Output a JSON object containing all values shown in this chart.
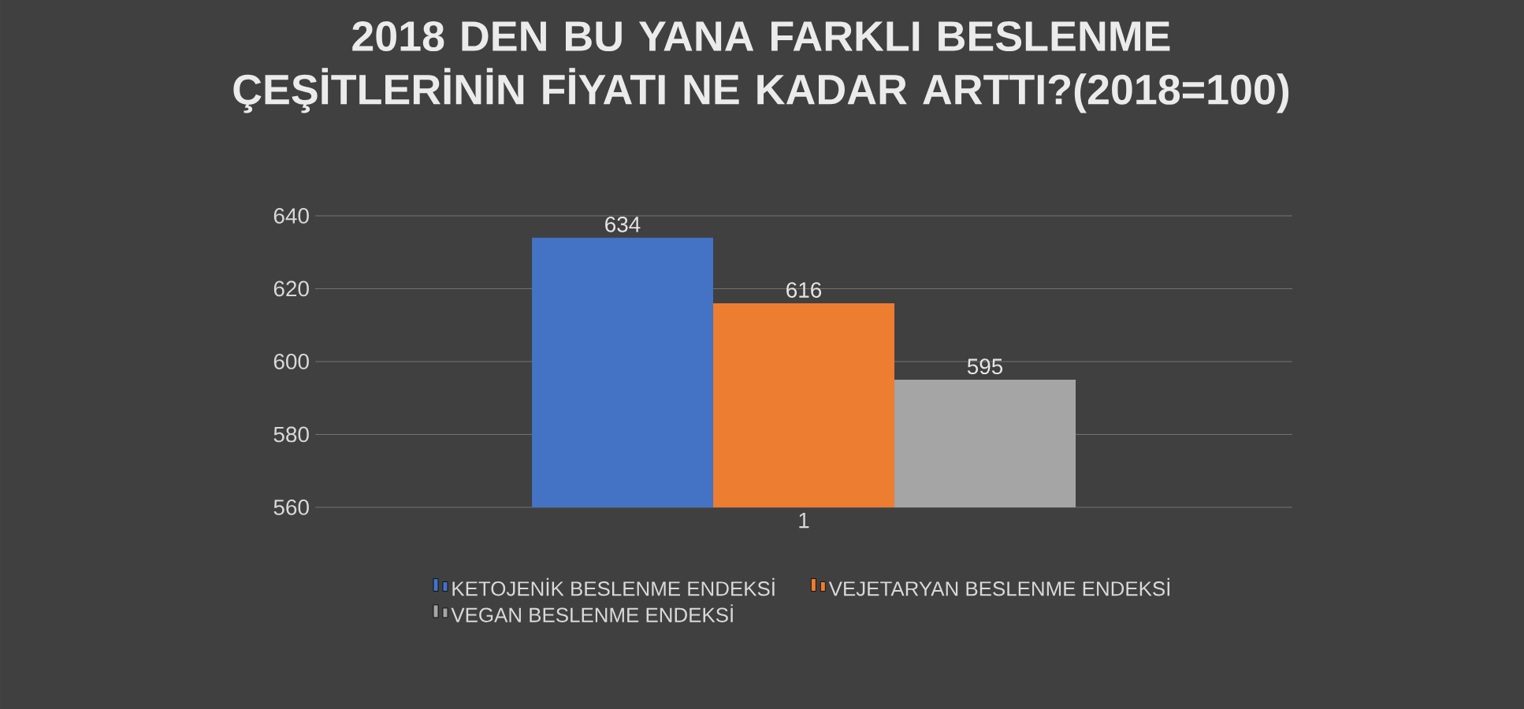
{
  "chart_data": {
    "type": "bar",
    "title": "2018 DEN BU YANA FARKLI BESLENME ÇEŞİTLERİNİN FİYATI NE KADAR ARTTI?(2018=100)",
    "categories": [
      "1"
    ],
    "series": [
      {
        "name": "KETOJENİK BESLENME ENDEKSİ",
        "color": "#4472c4",
        "values": [
          634
        ]
      },
      {
        "name": "VEJETARYAN BESLENME ENDEKSİ",
        "color": "#ed7d31",
        "values": [
          616
        ]
      },
      {
        "name": "VEGAN BESLENME ENDEKSİ",
        "color": "#a5a5a5",
        "values": [
          595
        ]
      }
    ],
    "ylim": [
      560,
      640
    ],
    "yticks": [
      560,
      580,
      600,
      620,
      640
    ],
    "grid": "y",
    "legend": "bottom",
    "data_labels": true
  }
}
